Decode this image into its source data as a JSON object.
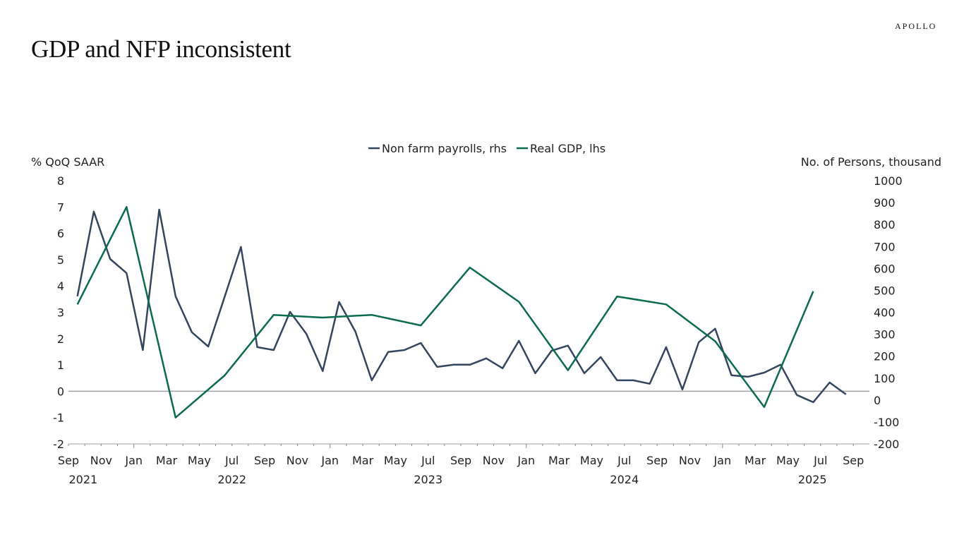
{
  "header": {
    "title": "GDP and NFP inconsistent",
    "logo": "APOLLO"
  },
  "chart_data": {
    "type": "line",
    "title": "GDP and NFP inconsistent",
    "ylabel_left": "% QoQ SAAR",
    "ylabel_right": "No. of Persons, thousand",
    "ylim_left": [
      -2,
      8
    ],
    "ylim_right": [
      -200,
      1000
    ],
    "yticks_left": [
      "8",
      "7",
      "6",
      "5",
      "4",
      "3",
      "2",
      "1",
      "0",
      "-1",
      "-2"
    ],
    "yticks_right": [
      "1000",
      "900",
      "800",
      "700",
      "600",
      "500",
      "400",
      "300",
      "200",
      "100",
      "0",
      "-100",
      "-200"
    ],
    "xticks": [
      "Sep",
      "Nov",
      "Jan",
      "Mar",
      "May",
      "Jul",
      "Sep",
      "Nov",
      "Jan",
      "Mar",
      "May",
      "Jul",
      "Sep",
      "Nov",
      "Jan",
      "Mar",
      "May",
      "Jul",
      "Sep",
      "Nov",
      "Jan",
      "Mar",
      "May",
      "Jul",
      "Sep"
    ],
    "xyears": [
      "2021",
      "2022",
      "2023",
      "2024",
      "2025"
    ],
    "legend": "top-center",
    "grid": false,
    "series": [
      {
        "name": "Non farm payrolls, rhs",
        "axis": "right",
        "color": "#34465f",
        "x": [
          "2021-09",
          "2021-10",
          "2021-11",
          "2021-12",
          "2022-01",
          "2022-02",
          "2022-03",
          "2022-04",
          "2022-05",
          "2022-06",
          "2022-07",
          "2022-08",
          "2022-09",
          "2022-10",
          "2022-11",
          "2022-12",
          "2023-01",
          "2023-02",
          "2023-03",
          "2023-04",
          "2023-05",
          "2023-06",
          "2023-07",
          "2023-08",
          "2023-09",
          "2023-10",
          "2023-11",
          "2023-12",
          "2024-01",
          "2024-02",
          "2024-03",
          "2024-04",
          "2024-05",
          "2024-06",
          "2024-07",
          "2024-08",
          "2024-09",
          "2024-10",
          "2024-11",
          "2024-12",
          "2025-01",
          "2025-02",
          "2025-03",
          "2025-04",
          "2025-05",
          "2025-06",
          "2025-07",
          "2025-08"
        ],
        "values": [
          473,
          859,
          643,
          579,
          228,
          868,
          473,
          309,
          244,
          470,
          698,
          241,
          228,
          402,
          302,
          132,
          447,
          312,
          90,
          219,
          228,
          260,
          151,
          161,
          161,
          190,
          145,
          270,
          122,
          225,
          248,
          122,
          196,
          90,
          90,
          74,
          241,
          48,
          264,
          325,
          113,
          106,
          125,
          161,
          23,
          -10,
          80,
          26
        ]
      },
      {
        "name": "Real GDP, lhs",
        "axis": "left",
        "color": "#0b6b4f",
        "x": [
          "2021-09",
          "2021-12",
          "2022-03",
          "2022-06",
          "2022-09",
          "2022-12",
          "2023-03",
          "2023-06",
          "2023-09",
          "2023-12",
          "2024-03",
          "2024-06",
          "2024-09",
          "2024-12",
          "2025-03",
          "2025-06"
        ],
        "values": [
          3.3,
          7.0,
          -1.0,
          0.6,
          2.9,
          2.8,
          2.9,
          2.5,
          4.7,
          3.4,
          0.8,
          3.6,
          3.3,
          1.9,
          -0.6,
          3.8
        ]
      }
    ]
  }
}
